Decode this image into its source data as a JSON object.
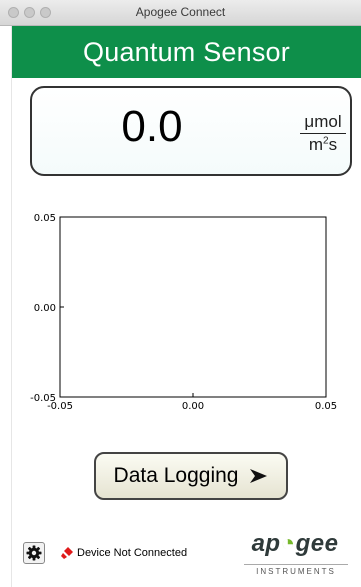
{
  "window": {
    "title": "Apogee Connect"
  },
  "header": {
    "title": "Quantum Sensor"
  },
  "reading": {
    "value": "0.0",
    "unit_numerator": "μmol",
    "unit_denominator": "m",
    "unit_den_exp": "2",
    "unit_den_tail": "s"
  },
  "chart_data": {
    "type": "line",
    "series": [],
    "xlim": [
      -0.05,
      0.05
    ],
    "ylim": [
      -0.05,
      0.05
    ],
    "x_ticks": [
      "-0.05",
      "0.00",
      "0.05"
    ],
    "y_ticks": [
      "0.05",
      "0.00",
      "-0.05"
    ],
    "grid": false
  },
  "actions": {
    "data_logging_label": "Data Logging"
  },
  "status": {
    "connection_text": "Device Not Connected",
    "icon": "disconnected-plug-icon",
    "icon_color": "#e01b1b"
  },
  "settings": {
    "icon": "gear-icon"
  },
  "logo": {
    "brand_a": "ap",
    "brand_b": "gee",
    "sub": "INSTRUMENTS",
    "leaf_color": "#76b82a"
  },
  "colors": {
    "header_bg": "#0e8f4a"
  }
}
